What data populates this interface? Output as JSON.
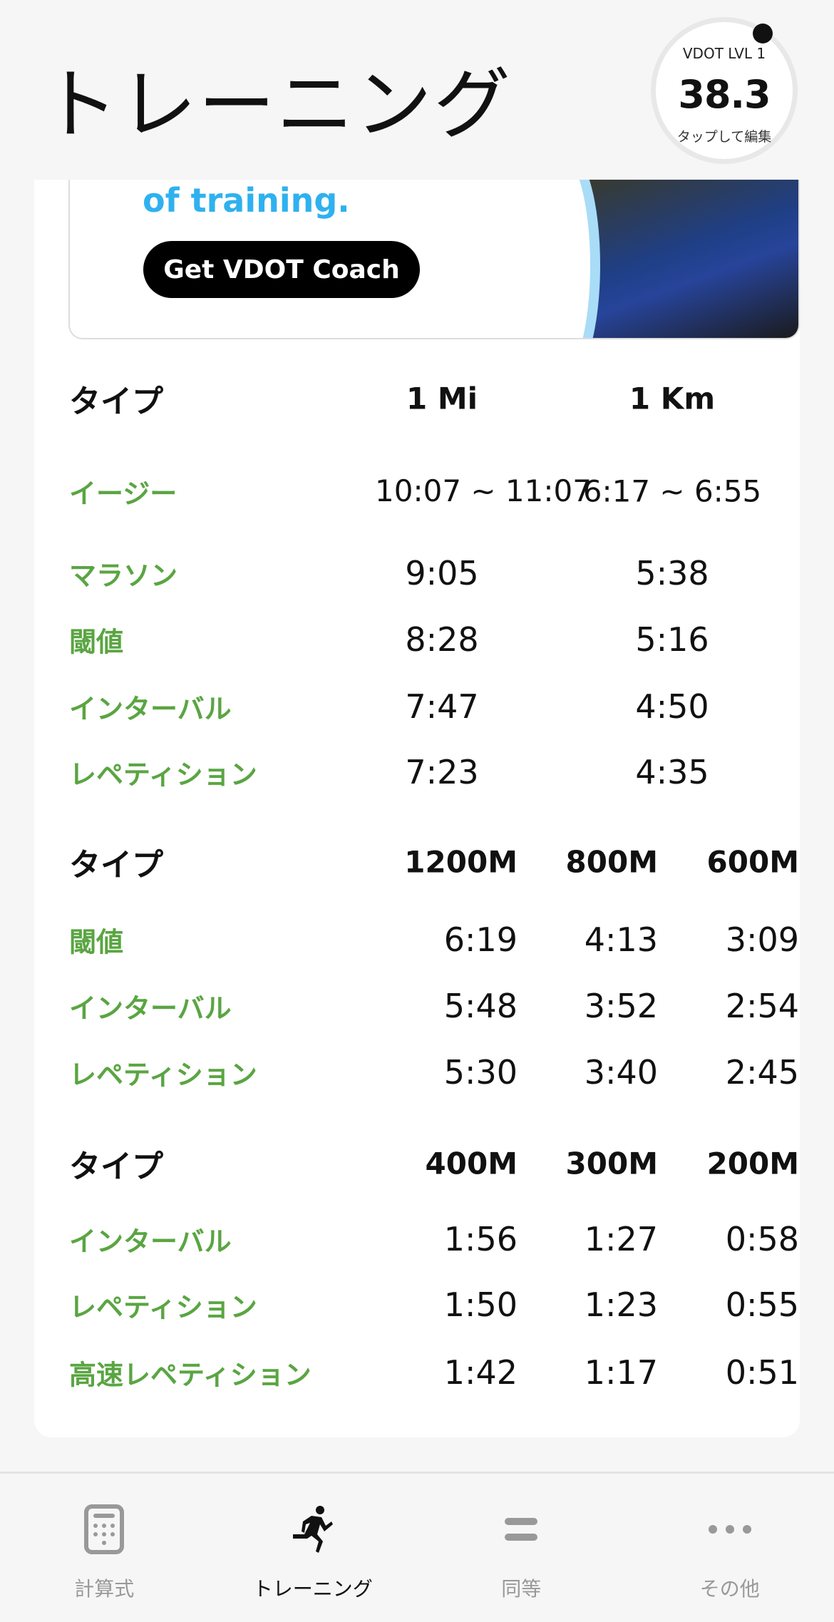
{
  "header": {
    "title": "トレーニング",
    "vdot": {
      "level_label": "VDOT LVL 1",
      "value": "38.3",
      "edit_hint": "タップして編集"
    }
  },
  "ad": {
    "text": "of training.",
    "button": "Get VDOT Coach"
  },
  "colors": {
    "label_green": "#5aa542",
    "ad_blue": "#2fb1ef"
  },
  "table1": {
    "headers": [
      "タイプ",
      "1 Mi",
      "1 Km"
    ],
    "rows": [
      {
        "type": "イージー",
        "mi": "10:07 ~ 11:07",
        "km": "6:17 ~ 6:55"
      },
      {
        "type": "マラソン",
        "mi": "9:05",
        "km": "5:38"
      },
      {
        "type": "閾値",
        "mi": "8:28",
        "km": "5:16"
      },
      {
        "type": "インターバル",
        "mi": "7:47",
        "km": "4:50"
      },
      {
        "type": "レペティション",
        "mi": "7:23",
        "km": "4:35"
      }
    ]
  },
  "table2": {
    "headers": [
      "タイプ",
      "1200M",
      "800M",
      "600M"
    ],
    "rows": [
      {
        "type": "閾値",
        "v": [
          "6:19",
          "4:13",
          "3:09"
        ]
      },
      {
        "type": "インターバル",
        "v": [
          "5:48",
          "3:52",
          "2:54"
        ]
      },
      {
        "type": "レペティション",
        "v": [
          "5:30",
          "3:40",
          "2:45"
        ]
      }
    ]
  },
  "table3": {
    "headers": [
      "タイプ",
      "400M",
      "300M",
      "200M"
    ],
    "rows": [
      {
        "type": "インターバル",
        "v": [
          "1:56",
          "1:27",
          "0:58"
        ]
      },
      {
        "type": "レペティション",
        "v": [
          "1:50",
          "1:23",
          "0:55"
        ]
      },
      {
        "type": "高速レペティション",
        "v": [
          "1:42",
          "1:17",
          "0:51"
        ]
      }
    ]
  },
  "tabs": [
    {
      "label": "計算式",
      "icon": "calculator-icon"
    },
    {
      "label": "トレーニング",
      "icon": "running-icon",
      "active": true
    },
    {
      "label": "同等",
      "icon": "equals-icon"
    },
    {
      "label": "その他",
      "icon": "more-icon"
    }
  ]
}
